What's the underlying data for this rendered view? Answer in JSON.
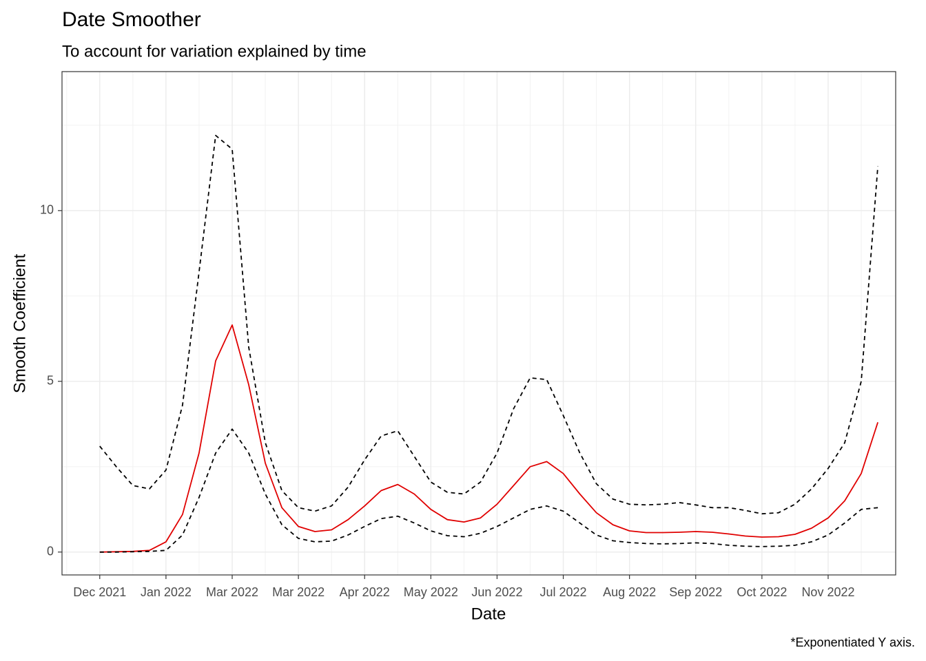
{
  "chart_data": {
    "type": "line",
    "title": "Date Smoother",
    "subtitle": "To account for variation explained by time",
    "x_label": "Date",
    "y_label": "Smooth Coefficient",
    "caption": "*Exponentiated Y axis.",
    "x": [
      0,
      0.25,
      0.5,
      0.75,
      1,
      1.25,
      1.5,
      1.75,
      2,
      2.25,
      2.5,
      2.75,
      3,
      3.25,
      3.5,
      3.75,
      4,
      4.25,
      4.5,
      4.75,
      5,
      5.25,
      5.5,
      5.75,
      6,
      6.25,
      6.5,
      6.75,
      7,
      7.25,
      7.5,
      7.75,
      8,
      8.25,
      8.5,
      8.75,
      9,
      9.25,
      9.5,
      9.75,
      10,
      10.25,
      10.5,
      10.75,
      11,
      11.25,
      11.5,
      11.75
    ],
    "series": [
      {
        "color": "#000000",
        "linestyle": "dashed",
        "values": [
          3.1,
          2.5,
          1.95,
          1.85,
          2.4,
          4.3,
          8.2,
          12.2,
          11.8,
          6.0,
          3.2,
          1.8,
          1.3,
          1.2,
          1.35,
          1.9,
          2.7,
          3.4,
          3.55,
          2.8,
          2.05,
          1.75,
          1.7,
          2.05,
          2.9,
          4.2,
          5.1,
          5.05,
          4.0,
          2.9,
          2.0,
          1.55,
          1.4,
          1.38,
          1.4,
          1.45,
          1.38,
          1.3,
          1.3,
          1.22,
          1.12,
          1.15,
          1.4,
          1.85,
          2.45,
          3.2,
          5.0,
          11.3
        ]
      },
      {
        "color": "#e00000",
        "linestyle": "solid",
        "values": [
          0,
          0.01,
          0.02,
          0.05,
          0.3,
          1.1,
          2.9,
          5.6,
          6.65,
          4.9,
          2.6,
          1.3,
          0.75,
          0.6,
          0.65,
          0.95,
          1.35,
          1.8,
          1.98,
          1.7,
          1.25,
          0.95,
          0.88,
          1.0,
          1.4,
          1.95,
          2.5,
          2.65,
          2.3,
          1.7,
          1.15,
          0.8,
          0.62,
          0.57,
          0.57,
          0.58,
          0.6,
          0.58,
          0.53,
          0.47,
          0.44,
          0.45,
          0.52,
          0.7,
          1.0,
          1.5,
          2.3,
          3.8
        ]
      },
      {
        "color": "#000000",
        "linestyle": "dashed",
        "values": [
          0,
          0,
          0.01,
          0.02,
          0.05,
          0.5,
          1.6,
          2.9,
          3.6,
          2.9,
          1.7,
          0.8,
          0.4,
          0.3,
          0.32,
          0.5,
          0.75,
          0.98,
          1.05,
          0.85,
          0.62,
          0.48,
          0.45,
          0.55,
          0.75,
          1.0,
          1.25,
          1.35,
          1.2,
          0.85,
          0.5,
          0.33,
          0.28,
          0.25,
          0.24,
          0.25,
          0.27,
          0.25,
          0.2,
          0.17,
          0.16,
          0.17,
          0.2,
          0.3,
          0.5,
          0.85,
          1.25,
          1.3
        ]
      }
    ],
    "xlim": [
      -0.57,
      12.02
    ],
    "xticks": [
      {
        "value": 0,
        "label": "Dec 2021"
      },
      {
        "value": 1,
        "label": "Jan 2022"
      },
      {
        "value": 2,
        "label": "Mar 2022"
      },
      {
        "value": 3,
        "label": "Mar 2022"
      },
      {
        "value": 4,
        "label": "Apr 2022"
      },
      {
        "value": 5,
        "label": "May 2022"
      },
      {
        "value": 6,
        "label": "Jun 2022"
      },
      {
        "value": 7,
        "label": "Jul 2022"
      },
      {
        "value": 8,
        "label": "Aug 2022"
      },
      {
        "value": 9,
        "label": "Sep 2022"
      },
      {
        "value": 10,
        "label": "Oct 2022"
      },
      {
        "value": 11,
        "label": "Nov 2022"
      }
    ],
    "ylim": [
      -0.67,
      14.07
    ],
    "yticks": [
      0,
      5,
      10
    ],
    "grid": true
  }
}
